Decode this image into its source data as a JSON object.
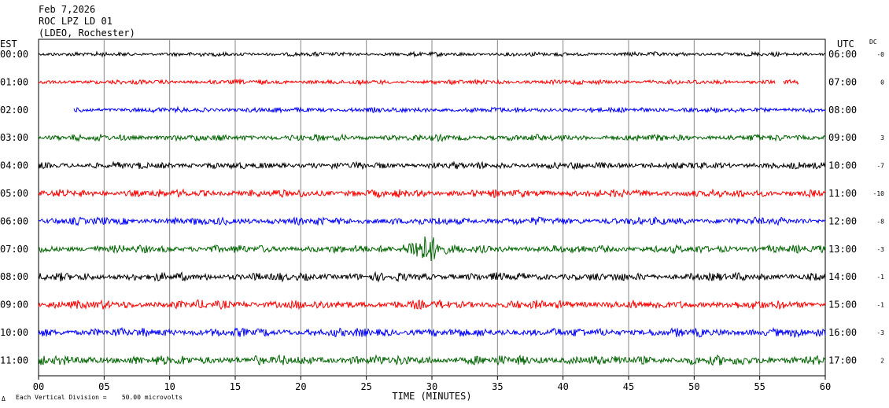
{
  "header": {
    "date": "Feb 7,2026",
    "station": "ROC LPZ LD 01",
    "network": "(LDEO, Rochester)"
  },
  "labels": {
    "left_tz": "EST",
    "right_tz": "UTC",
    "dc_header": "DC",
    "x_axis_title": "TIME (MINUTES)",
    "scale_note": "Each Vertical Division =    50.00 microvolts",
    "corner_mark": "Δ"
  },
  "chart_data": {
    "type": "line",
    "title": "ROC LPZ LD 01",
    "xlabel": "TIME (MINUTES)",
    "ylabel": "",
    "xlim": [
      0,
      60
    ],
    "x_ticks": [
      "00",
      "05",
      "10",
      "15",
      "20",
      "25",
      "30",
      "35",
      "40",
      "45",
      "50",
      "55",
      "60"
    ],
    "grid": true,
    "trace_colors": [
      "#000000",
      "#ff0000",
      "#0000ff",
      "#006400"
    ],
    "rows": [
      {
        "est": "00:00",
        "utc": "06:00",
        "dc": "-0",
        "start_min": 0,
        "end_min": 60,
        "amplitude": 1.0
      },
      {
        "est": "01:00",
        "utc": "07:00",
        "dc": "0",
        "start_min": 0,
        "end_min": 58,
        "amplitude": 1.1,
        "gap_start": 56.2,
        "gap_end": 56.8
      },
      {
        "est": "02:00",
        "utc": "08:00",
        "dc": "",
        "start_min": 2.7,
        "end_min": 60,
        "amplitude": 1.2
      },
      {
        "est": "03:00",
        "utc": "09:00",
        "dc": "3",
        "start_min": 0,
        "end_min": 60,
        "amplitude": 1.5
      },
      {
        "est": "04:00",
        "utc": "10:00",
        "dc": "-7",
        "start_min": 0,
        "end_min": 60,
        "amplitude": 1.6
      },
      {
        "est": "05:00",
        "utc": "11:00",
        "dc": "-10",
        "start_min": 0,
        "end_min": 60,
        "amplitude": 1.8
      },
      {
        "est": "06:00",
        "utc": "12:00",
        "dc": "-8",
        "start_min": 0,
        "end_min": 60,
        "amplitude": 1.8
      },
      {
        "est": "07:00",
        "utc": "13:00",
        "dc": "-3",
        "start_min": 0,
        "end_min": 60,
        "amplitude": 1.8,
        "event_min": 29.5,
        "event_amp": 4.5
      },
      {
        "est": "08:00",
        "utc": "14:00",
        "dc": "-1",
        "start_min": 0,
        "end_min": 60,
        "amplitude": 1.9
      },
      {
        "est": "09:00",
        "utc": "15:00",
        "dc": "-1",
        "start_min": 0,
        "end_min": 60,
        "amplitude": 2.0
      },
      {
        "est": "10:00",
        "utc": "16:00",
        "dc": "-3",
        "start_min": 0,
        "end_min": 60,
        "amplitude": 2.0
      },
      {
        "est": "11:00",
        "utc": "17:00",
        "dc": "2",
        "start_min": 0,
        "end_min": 60,
        "amplitude": 2.2
      }
    ]
  }
}
